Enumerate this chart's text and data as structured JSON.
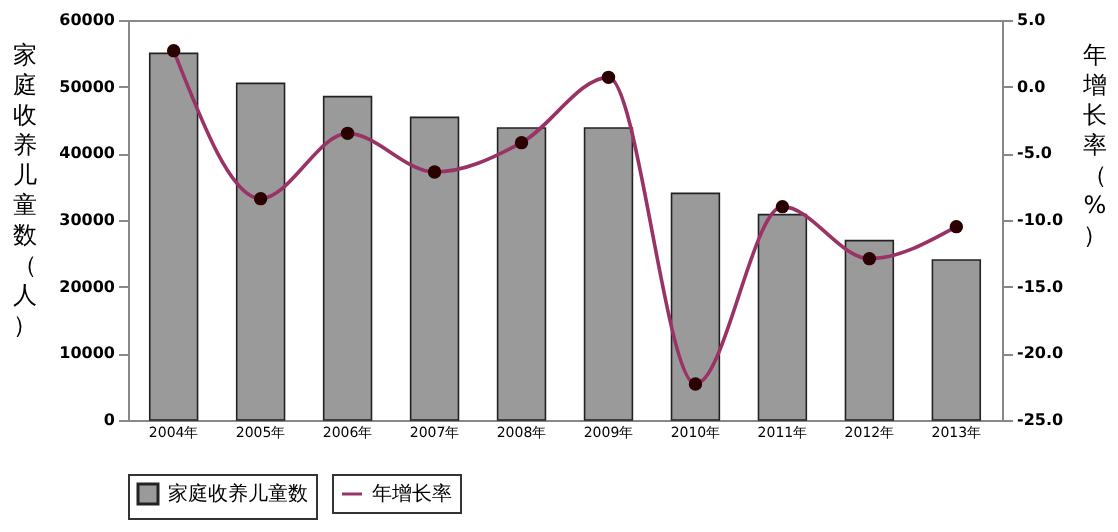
{
  "chart_data": {
    "type": "bar",
    "categories": [
      "2004年",
      "2005年",
      "2006年",
      "2007年",
      "2008年",
      "2009年",
      "2010年",
      "2011年",
      "2012年",
      "2013年"
    ],
    "series": [
      {
        "name": "家庭收养儿童数",
        "color": "#9a9a9a",
        "values": [
          55000,
          50500,
          48500,
          45400,
          43800,
          43800,
          34000,
          30800,
          26900,
          24000
        ]
      },
      {
        "name": "年增长率",
        "type": "line",
        "axis": "y2",
        "color": "#993366",
        "values": [
          2.7,
          -8.4,
          -3.5,
          -6.4,
          -4.2,
          0.7,
          -22.3,
          -9.0,
          -12.9,
          -10.5
        ]
      }
    ],
    "ylabel": "家庭收养儿童数（人）",
    "y2label": "年增长率（%）",
    "ylim": [
      0,
      60000
    ],
    "yticks": [
      0,
      10000,
      20000,
      30000,
      40000,
      50000,
      60000
    ],
    "y2lim": [
      -25,
      5
    ],
    "y2ticks": [
      {
        "value": -25,
        "label": "-25.0"
      },
      {
        "value": -20,
        "label": "-20.0"
      },
      {
        "value": -15,
        "label": "-15.0"
      },
      {
        "value": -10,
        "label": "-10.0"
      },
      {
        "value": -5,
        "label": "-5.0"
      },
      {
        "value": 0,
        "label": "0.0"
      },
      {
        "value": 5,
        "label": "5.0"
      }
    ],
    "marker": "circle",
    "legend": "bottom",
    "grid": false
  }
}
